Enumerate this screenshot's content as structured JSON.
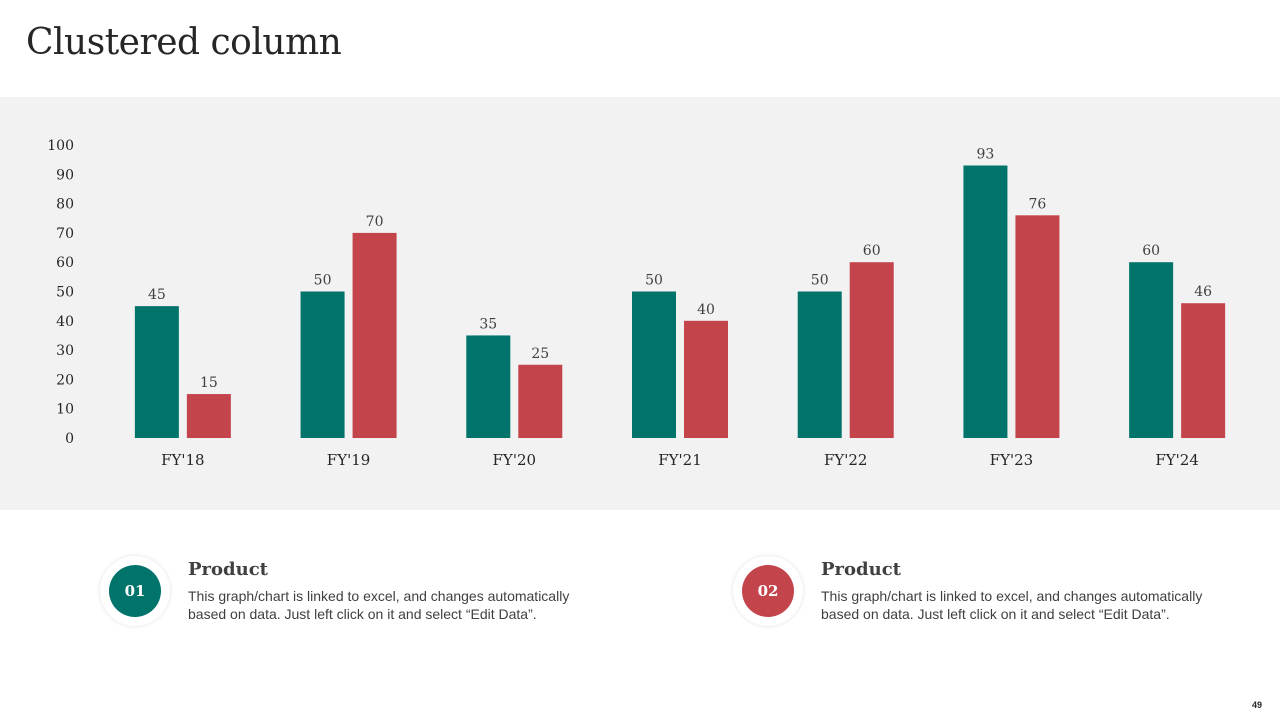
{
  "slide": {
    "title": "Clustered column",
    "page_number": "49"
  },
  "colors": {
    "series1": "#00736a",
    "series2": "#c3444b",
    "panel_bg": "#f2f2f2"
  },
  "chart_data": {
    "type": "bar",
    "title": "",
    "xlabel": "",
    "ylabel": "",
    "categories": [
      "FY'18",
      "FY'19",
      "FY'20",
      "FY'21",
      "FY'22",
      "FY'23",
      "FY'24"
    ],
    "series": [
      {
        "name": "Product 01",
        "values": [
          45,
          50,
          35,
          50,
          50,
          93,
          60
        ]
      },
      {
        "name": "Product 02",
        "values": [
          15,
          70,
          25,
          40,
          60,
          76,
          46
        ]
      }
    ],
    "ylim": [
      0,
      100
    ],
    "yticks": [
      0,
      10,
      20,
      30,
      40,
      50,
      60,
      70,
      80,
      90,
      100
    ],
    "grid": false,
    "data_labels": true
  },
  "legend": [
    {
      "number": "01",
      "title": "Product",
      "desc_line1": "This graph/chart is linked to excel, and changes automatically",
      "desc_line2": "based on data. Just left click on it and select “Edit Data”."
    },
    {
      "number": "02",
      "title": "Product",
      "desc_line1": "This graph/chart is linked to excel, and changes automatically",
      "desc_line2": "based on data. Just left click on it and select “Edit Data”."
    }
  ]
}
